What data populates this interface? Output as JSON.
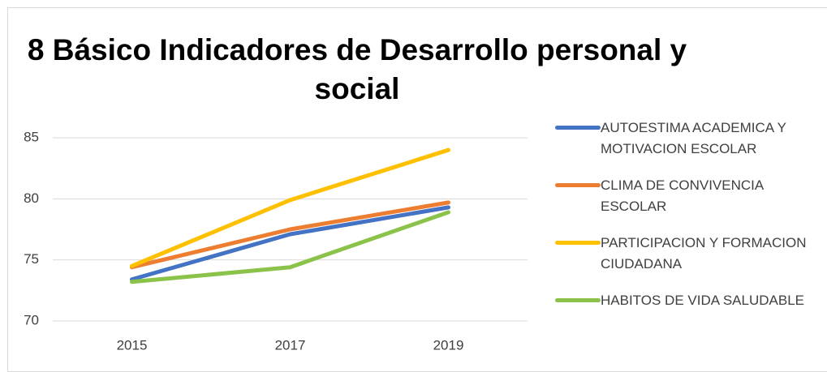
{
  "chart_data": {
    "type": "line",
    "title": "8 Básico Indicadores de Desarrollo personal y social",
    "categories": [
      "2015",
      "2017",
      "2019"
    ],
    "series": [
      {
        "name": "AUTOESTIMA ACADEMICA Y MOTIVACION ESCOLAR",
        "color": "#4472c4",
        "values": [
          73.4,
          77.1,
          79.3
        ]
      },
      {
        "name": "CLIMA DE CONVIVENCIA ESCOLAR",
        "color": "#ed7d31",
        "values": [
          74.4,
          77.5,
          79.7
        ]
      },
      {
        "name": "PARTICIPACION Y FORMACION CIUDADANA",
        "color": "#ffc000",
        "values": [
          74.5,
          79.9,
          84.0
        ]
      },
      {
        "name": "HABITOS DE VIDA SALUDABLE",
        "color": "#8bc34a",
        "values": [
          73.2,
          74.4,
          78.9
        ]
      }
    ],
    "ylim": [
      70,
      85
    ],
    "yticks": [
      70,
      75,
      80,
      85
    ],
    "grid": true,
    "legend": "right"
  }
}
